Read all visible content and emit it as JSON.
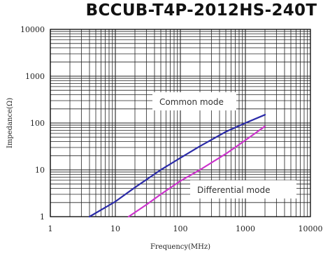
{
  "chart_data": {
    "type": "line",
    "title": "BCCUB-T4P-2012HS-240T",
    "xlabel": "Frequency(MHz)",
    "ylabel": "Impedance(Ω)",
    "xscale": "log",
    "yscale": "log",
    "xlim": [
      1,
      10000
    ],
    "ylim": [
      1,
      10000
    ],
    "x_ticks": [
      "1",
      "10",
      "100",
      "1000",
      "10000"
    ],
    "y_ticks": [
      "1",
      "10",
      "100",
      "1000",
      "10000"
    ],
    "grid": true,
    "series": [
      {
        "name": "Common mode",
        "color": "#2b2ba8",
        "x": [
          4,
          10,
          20,
          50,
          100,
          200,
          500,
          1000,
          2000
        ],
        "y": [
          1,
          2.1,
          4.2,
          10,
          18,
          32,
          65,
          100,
          150
        ]
      },
      {
        "name": "Differential mode",
        "color": "#cc33cc",
        "x": [
          16,
          30,
          50,
          100,
          200,
          500,
          1000,
          2000
        ],
        "y": [
          1,
          1.8,
          3,
          5.8,
          10,
          22,
          43,
          85
        ]
      }
    ],
    "annotations": [
      {
        "text": "Common mode",
        "series": "Common mode"
      },
      {
        "text": "Differential mode",
        "series": "Differential mode"
      }
    ]
  }
}
